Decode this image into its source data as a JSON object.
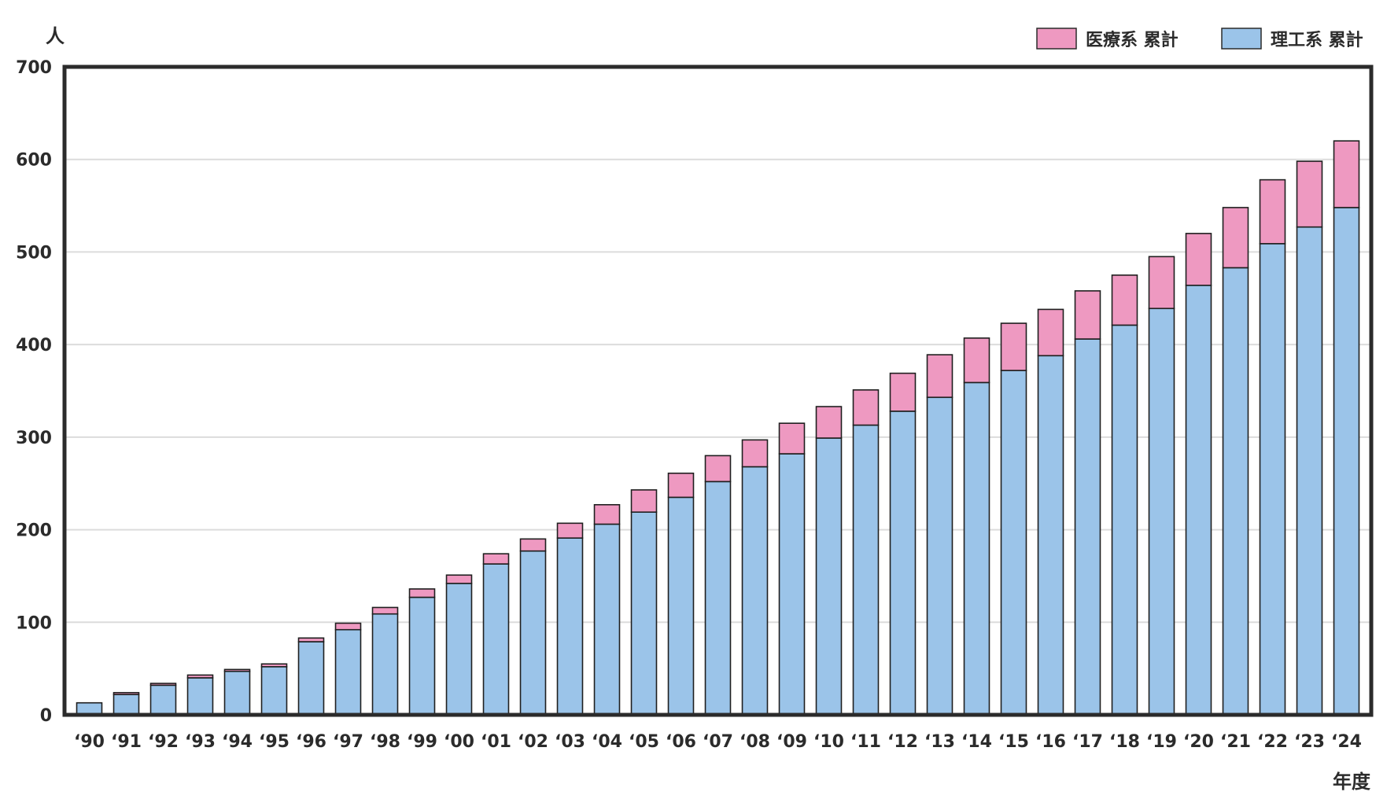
{
  "chart_data": {
    "type": "bar",
    "stacked": true,
    "ylabel": "人",
    "xlabel": "年度",
    "ylim": [
      0,
      700
    ],
    "yticks": [
      0,
      100,
      200,
      300,
      400,
      500,
      600,
      700
    ],
    "grid": true,
    "legend_position": "top-right",
    "categories": [
      "‘90",
      "‘91",
      "‘92",
      "‘93",
      "‘94",
      "‘95",
      "‘96",
      "‘97",
      "‘98",
      "‘99",
      "‘00",
      "‘01",
      "‘02",
      "‘03",
      "‘04",
      "‘05",
      "‘06",
      "‘07",
      "‘08",
      "‘09",
      "‘10",
      "‘11",
      "‘12",
      "‘13",
      "‘14",
      "‘15",
      "‘16",
      "‘17",
      "‘18",
      "‘19",
      "‘20",
      "‘21",
      "‘22",
      "‘23",
      "‘24"
    ],
    "series": [
      {
        "name": "理工系 累計",
        "color": "#9bc4e9",
        "values": [
          13,
          22,
          32,
          40,
          47,
          52,
          79,
          92,
          109,
          127,
          142,
          163,
          177,
          191,
          206,
          219,
          235,
          252,
          268,
          282,
          299,
          313,
          328,
          343,
          359,
          372,
          388,
          406,
          421,
          439,
          464,
          483,
          509,
          527,
          548
        ]
      },
      {
        "name": "医療系 累計",
        "color": "#ee99c1",
        "values": [
          0,
          2,
          2,
          3,
          2,
          3,
          4,
          7,
          7,
          9,
          9,
          11,
          13,
          16,
          21,
          24,
          26,
          28,
          29,
          33,
          34,
          38,
          41,
          46,
          48,
          51,
          50,
          52,
          54,
          56,
          56,
          65,
          69,
          71,
          72
        ]
      }
    ]
  }
}
